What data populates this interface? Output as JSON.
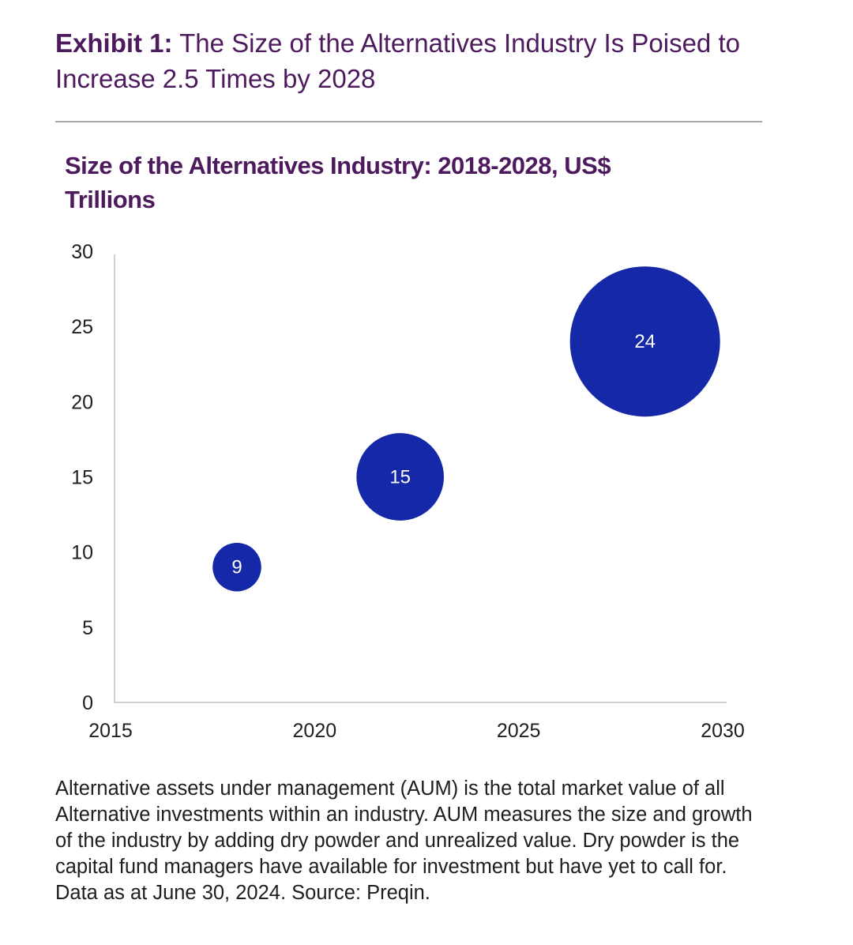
{
  "exhibit": {
    "label": "Exhibit 1:",
    "title": "The Size of the Alternatives Industry Is Poised to Increase 2.5 Times by 2028"
  },
  "colors": {
    "title": "#4e1a5e",
    "bubble": "#1428a8",
    "axis": "#d0d0d0",
    "rule": "#a9a9a9",
    "text": "#1e1e1e"
  },
  "chart_data": {
    "type": "scatter",
    "bubble": true,
    "title": "Size of the Alternatives Industry: 2018-2028, US$ Trillions",
    "xlabel": "",
    "ylabel": "",
    "xlim": [
      2015,
      2030
    ],
    "ylim": [
      0,
      30
    ],
    "x_ticks": [
      "2015",
      "2020",
      "2025",
      "2030"
    ],
    "y_ticks": [
      "0",
      "5",
      "10",
      "15",
      "20",
      "25",
      "30"
    ],
    "grid": false,
    "legend": "none",
    "points": [
      {
        "x": 2018,
        "y": 9,
        "size": 9,
        "label": "9"
      },
      {
        "x": 2022,
        "y": 15,
        "size": 15,
        "label": "15"
      },
      {
        "x": 2028,
        "y": 24,
        "size": 24,
        "label": "24"
      }
    ]
  },
  "footnote": "Alternative assets under management (AUM) is the total market value of all Alternative investments within an industry. AUM measures the size and growth of the industry by adding dry powder and unrealized value. Dry powder is the capital fund managers have available for investment but have yet to call for. Data as at June 30, 2024. Source: Preqin."
}
